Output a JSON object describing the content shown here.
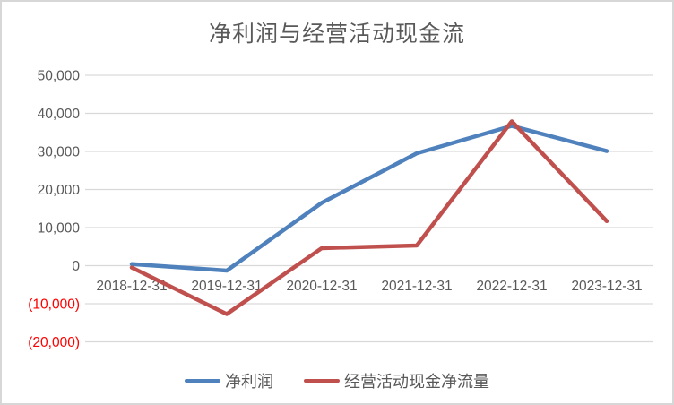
{
  "chart_data": {
    "type": "line",
    "title": "净利润与经营活动现金流",
    "categories": [
      "2018-12-31",
      "2019-12-31",
      "2020-12-31",
      "2021-12-31",
      "2022-12-31",
      "2023-12-31"
    ],
    "series": [
      {
        "key": "net-profit",
        "name": "净利润",
        "color": "#4F81BD",
        "values": [
          400,
          -1300,
          16500,
          29500,
          36700,
          30100
        ]
      },
      {
        "key": "operating-cash-flow",
        "name": "经营活动现金净流量",
        "color": "#C0504D",
        "values": [
          -500,
          -12700,
          4600,
          5300,
          37900,
          11700
        ]
      }
    ],
    "xlabel": "",
    "ylabel": "",
    "ylim": [
      -20000,
      50000
    ],
    "yticks": {
      "values": [
        50000,
        40000,
        30000,
        20000,
        10000,
        0,
        -10000,
        -20000
      ],
      "labels": [
        "50,000",
        "40,000",
        "30,000",
        "20,000",
        "10,000",
        "0",
        "(10,000)",
        "(20,000)"
      ]
    },
    "grid": true,
    "legend_position": "bottom",
    "colors": {
      "grid": "#D9D9D9",
      "axis_text": "#595959",
      "negative_text": "#FF0000",
      "frame_border": "#D7D7D7",
      "title_text": "#595959"
    }
  }
}
